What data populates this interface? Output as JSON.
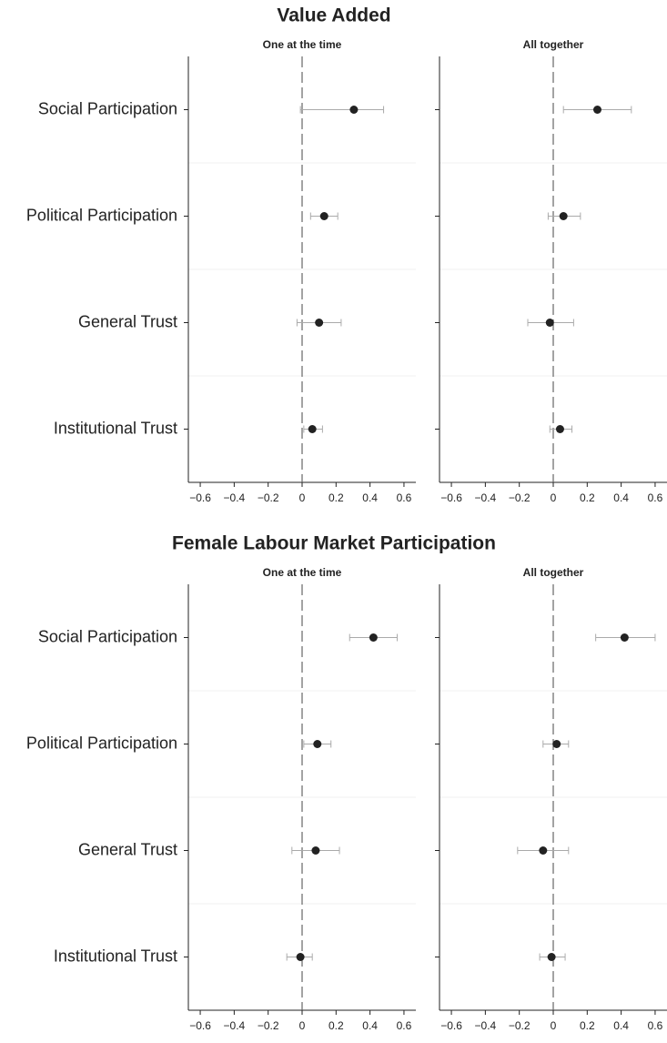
{
  "chart_data": [
    {
      "type": "dot",
      "title": "Value Added",
      "subtitle": "One at the time",
      "categories": [
        "Social Participation",
        "Political Participation",
        "General Trust",
        "Institutional Trust"
      ],
      "values": [
        0.305,
        0.13,
        0.1,
        0.06
      ],
      "lower": [
        -0.01,
        0.05,
        -0.03,
        0.01
      ],
      "upper": [
        0.48,
        0.21,
        0.23,
        0.12
      ],
      "xlim": [
        -0.67,
        0.67
      ],
      "xticks": [
        {
          "value": -0.6,
          "label": "−0.6"
        },
        {
          "value": -0.4,
          "label": "−0.4"
        },
        {
          "value": -0.2,
          "label": "−0.2"
        },
        0,
        0.2,
        0.4,
        0.6
      ],
      "refline": 0,
      "color": "#222222",
      "error_color": "#aaaaaa"
    },
    {
      "type": "dot",
      "subtitle": "All together",
      "values": [
        0.26,
        0.06,
        -0.02,
        0.04
      ],
      "lower": [
        0.06,
        -0.03,
        -0.15,
        -0.02
      ],
      "upper": [
        0.46,
        0.16,
        0.12,
        0.11
      ],
      "xlim": [
        -0.67,
        0.67
      ],
      "xticks": [
        {
          "value": -0.6,
          "label": "−0.6"
        },
        {
          "value": -0.4,
          "label": "−0.4"
        },
        {
          "value": -0.2,
          "label": "−0.2"
        },
        0,
        0.2,
        0.4,
        0.6
      ],
      "refline": 0,
      "color": "#222222",
      "error_color": "#aaaaaa"
    },
    {
      "type": "dot",
      "title": "Female Labour Market Participation",
      "subtitle": "One at the time",
      "categories": [
        "Social Participation",
        "Political Participation",
        "General Trust",
        "Institutional Trust"
      ],
      "values": [
        0.42,
        0.09,
        0.08,
        -0.01
      ],
      "lower": [
        0.28,
        0.01,
        -0.06,
        -0.09
      ],
      "upper": [
        0.56,
        0.17,
        0.22,
        0.06
      ],
      "xlim": [
        -0.67,
        0.67
      ],
      "xticks": [
        {
          "value": -0.6,
          "label": "−0.6"
        },
        {
          "value": -0.4,
          "label": "−0.4"
        },
        {
          "value": -0.2,
          "label": "−0.2"
        },
        0,
        0.2,
        0.4,
        0.6
      ],
      "refline": 0,
      "color": "#222222",
      "error_color": "#aaaaaa"
    },
    {
      "type": "dot",
      "subtitle": "All together",
      "values": [
        0.42,
        0.02,
        -0.06,
        -0.01
      ],
      "lower": [
        0.25,
        -0.06,
        -0.21,
        -0.08
      ],
      "upper": [
        0.6,
        0.09,
        0.09,
        0.07
      ],
      "xlim": [
        -0.67,
        0.67
      ],
      "xticks": [
        {
          "value": -0.6,
          "label": "−0.6"
        },
        {
          "value": -0.4,
          "label": "−0.4"
        },
        {
          "value": -0.2,
          "label": "−0.2"
        },
        0,
        0.2,
        0.4,
        0.6
      ],
      "refline": 0,
      "color": "#222222",
      "error_color": "#aaaaaa"
    }
  ]
}
